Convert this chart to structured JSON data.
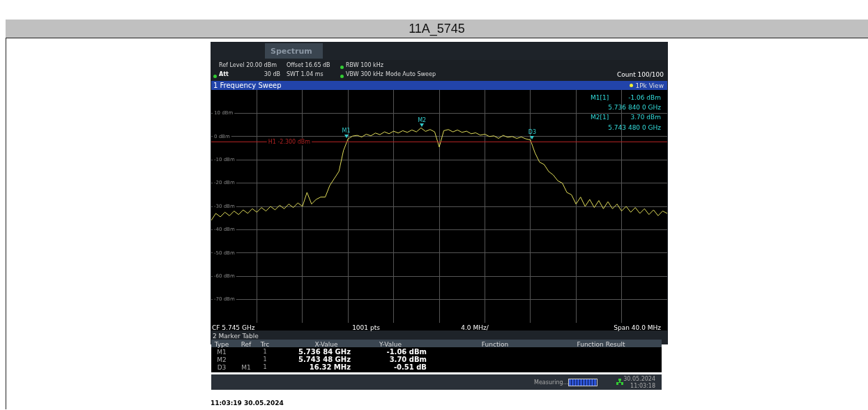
{
  "chart_data": {
    "type": "line",
    "title": "11A_5745",
    "subtitle": "1 Frequency Sweep",
    "categories": [
      null,
      null,
      null,
      null,
      null,
      null,
      null,
      null,
      null,
      null,
      null,
      null,
      null,
      null,
      null,
      null,
      null,
      null,
      null,
      null,
      null,
      null,
      null,
      null,
      null,
      null,
      null,
      null,
      null,
      null,
      null,
      null,
      null,
      null,
      null,
      null,
      null,
      null,
      null,
      null,
      null,
      null,
      null,
      null,
      null,
      null,
      null,
      null,
      null,
      null,
      null,
      null,
      null,
      null,
      null,
      null,
      null,
      null,
      null,
      null,
      null,
      null,
      null,
      null,
      null,
      null,
      null,
      null,
      null,
      null,
      null,
      null,
      null,
      null,
      null,
      null,
      null,
      null,
      null,
      null,
      null,
      null,
      null,
      null,
      null,
      null,
      null,
      null,
      null,
      null,
      null,
      null,
      null,
      null,
      null,
      null,
      null,
      null,
      null,
      null,
      null
    ],
    "ylim": [
      -80,
      20
    ],
    "yticks": [
      {
        "value": 10,
        "label": "10 dBm"
      },
      {
        "value": 0,
        "label": "0 dBm"
      },
      {
        "value": -10,
        "label": "-10 dBm"
      },
      {
        "value": -20,
        "label": "-20 dBm"
      },
      {
        "value": -30,
        "label": "-30 dBm"
      },
      {
        "value": -40,
        "label": "-40 dBm"
      },
      {
        "value": -50,
        "label": "-50 dBm"
      },
      {
        "value": -60,
        "label": "-60 dBm"
      },
      {
        "value": -70,
        "label": "-70 dBm"
      }
    ],
    "grid": true,
    "legend": false,
    "marker": "none",
    "line_style": "solid",
    "series": [
      {
        "color": "#e0dc5a",
        "values": [
          -36,
          -33,
          -34.5,
          -32.5,
          -34,
          -32,
          -33.5,
          -31.5,
          -33,
          -31,
          -32.5,
          -30.5,
          -32,
          -30,
          -31.5,
          -29.5,
          -31,
          -29,
          -30.5,
          -28.5,
          -30,
          -24,
          -29,
          -27,
          -26,
          -26,
          -21,
          -18,
          -15,
          -6,
          -1,
          0.2,
          0.5,
          -0.2,
          1,
          0.3,
          1.5,
          0.8,
          2,
          1.2,
          2.3,
          1.5,
          2.5,
          1.8,
          2.8,
          2,
          3.7,
          2.2,
          3,
          2,
          -4.5,
          2.5,
          3,
          2,
          2.8,
          1.8,
          2.3,
          1.2,
          1.6,
          0.6,
          1,
          0,
          0.3,
          -0.8,
          0.5,
          -0.3,
          0,
          -0.8,
          -0.2,
          -1,
          -1.5,
          -7,
          -11,
          -12,
          -15,
          -16.5,
          -19,
          -20,
          -24,
          -25,
          -29,
          -26,
          -30,
          -27,
          -30.5,
          -27.5,
          -31,
          -28,
          -31,
          -29,
          -32,
          -30,
          -32.5,
          -30.5,
          -33,
          -31,
          -33.5,
          -31.5,
          -34,
          -32,
          -33
        ]
      }
    ],
    "ref_lines": [
      {
        "axis": "y",
        "value": -2.3,
        "label": "H1 -2.300 dBm",
        "color": "#b22222"
      }
    ],
    "annotations": [
      {
        "text": "M1",
        "y": -1.06
      },
      {
        "text": "M2",
        "y": 3.7
      },
      {
        "text": "D3",
        "y": -1.57
      },
      "Spectrum",
      "Ref Level 20.00 dBm",
      "Offset 16.65 dB",
      "RBW 100 kHz",
      "Att",
      "30 dB",
      "SWT 1.04 ms",
      "VBW 300 kHz",
      "Mode Auto Sweep",
      "Count 100/100",
      "1Pk View",
      "M1[1]",
      "-1.06 dBm",
      "5.736 840 0 GHz",
      "M2[1]",
      "3.70 dBm",
      "5.743 480 0 GHz",
      "CF 5.745 GHz",
      "1001 pts",
      "4.0 MHz/",
      "Span 40.0 MHz",
      "2 Marker Table",
      "Type",
      "Ref",
      "Trc",
      "X-Value",
      "Y-Value",
      "Function",
      "Function Result",
      "M1",
      "1",
      "5.736 84 GHz",
      "-1.06 dBm",
      "M2",
      "1",
      "5.743 48 GHz",
      "3.70 dBm",
      "D3",
      "M1",
      "1",
      "16.32 MHz",
      "-0.51 dB",
      "Measuring...",
      "30.05.2024",
      "11:03:18",
      "11:03:19 30.05.2024"
    ]
  }
}
